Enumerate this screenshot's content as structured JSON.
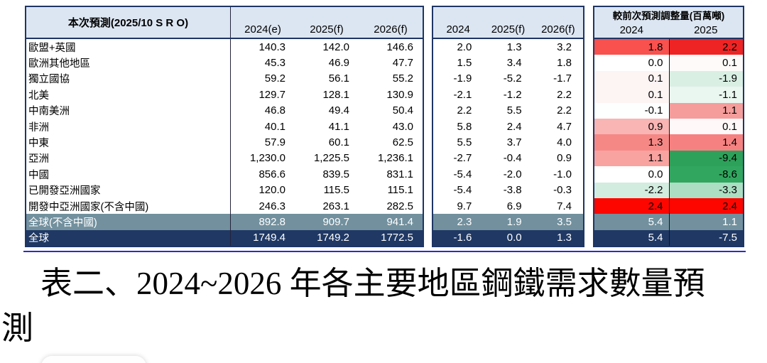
{
  "table": {
    "left_title": "本次預測(2025/10 S R O)",
    "sec1_years": [
      "2024(e)",
      "2025(f)",
      "2026(f)"
    ],
    "sec2_years": [
      "2024",
      "2025(f)",
      "2026(f)"
    ],
    "adj_title": "較前次預測調整量(百萬噸)",
    "sec3_years": [
      "2024",
      "2025"
    ],
    "row_colors": {
      "subtotal": "#72909e",
      "total": "#1f3864"
    },
    "rows": [
      {
        "label": "歐盟+英國",
        "values": [
          "140.3",
          "142.0",
          "146.6"
        ],
        "pct": [
          "2.0",
          "1.3",
          "3.2"
        ],
        "adj": [
          "1.8",
          "2.2"
        ],
        "adj_colors": [
          "#f8514e",
          "#ee2424"
        ],
        "row_type": "normal"
      },
      {
        "label": "歐洲其他地區",
        "values": [
          "45.3",
          "46.9",
          "47.7"
        ],
        "pct": [
          "1.5",
          "3.4",
          "1.8"
        ],
        "adj": [
          "0.0",
          "0.1"
        ],
        "adj_colors": [
          "#ffffff",
          "#fefafa"
        ],
        "row_type": "normal"
      },
      {
        "label": "獨立國協",
        "values": [
          "59.2",
          "56.1",
          "55.2"
        ],
        "pct": [
          "-1.9",
          "-5.2",
          "-1.7"
        ],
        "adj": [
          "0.1",
          "-1.9"
        ],
        "adj_colors": [
          "#fdf4f4",
          "#d9efe4"
        ],
        "row_type": "normal"
      },
      {
        "label": "北美",
        "values": [
          "129.7",
          "128.1",
          "130.9"
        ],
        "pct": [
          "-2.1",
          "-1.2",
          "2.2"
        ],
        "adj": [
          "0.1",
          "-1.1"
        ],
        "adj_colors": [
          "#fdf4f4",
          "#eaf6f0"
        ],
        "row_type": "normal"
      },
      {
        "label": "中南美洲",
        "values": [
          "46.8",
          "49.4",
          "50.4"
        ],
        "pct": [
          "2.2",
          "5.5",
          "2.2"
        ],
        "adj": [
          "-0.1",
          "1.1"
        ],
        "adj_colors": [
          "#fdfefe",
          "#f59d9b"
        ],
        "row_type": "normal"
      },
      {
        "label": "非洲",
        "values": [
          "40.1",
          "41.1",
          "43.0"
        ],
        "pct": [
          "5.8",
          "2.4",
          "4.7"
        ],
        "adj": [
          "0.9",
          "0.1"
        ],
        "adj_colors": [
          "#f8b5b3",
          "#fef8f8"
        ],
        "row_type": "normal"
      },
      {
        "label": "中東",
        "values": [
          "57.9",
          "60.1",
          "62.5"
        ],
        "pct": [
          "5.5",
          "3.7",
          "4.0"
        ],
        "adj": [
          "1.3",
          "1.4"
        ],
        "adj_colors": [
          "#f58885",
          "#f58281"
        ],
        "row_type": "normal"
      },
      {
        "label": "亞洲",
        "values": [
          "1,230.0",
          "1,225.5",
          "1,236.1"
        ],
        "pct": [
          "-2.7",
          "-0.4",
          "0.9"
        ],
        "adj": [
          "1.1",
          "-9.4"
        ],
        "adj_colors": [
          "#f9a3a1",
          "#2da15a"
        ],
        "row_type": "normal"
      },
      {
        "label": "中國",
        "values": [
          "856.6",
          "839.5",
          "831.1"
        ],
        "pct": [
          "-5.4",
          "-2.0",
          "-1.0"
        ],
        "adj": [
          "0.0",
          "-8.6"
        ],
        "adj_colors": [
          "#ffffff",
          "#31a65f"
        ],
        "row_type": "normal"
      },
      {
        "label": "已開發亞洲國家",
        "values": [
          "120.0",
          "115.5",
          "115.1"
        ],
        "pct": [
          "-5.4",
          "-3.8",
          "-0.3"
        ],
        "adj": [
          "-2.2",
          "-3.3"
        ],
        "adj_colors": [
          "#d2ecdf",
          "#abdec2"
        ],
        "row_type": "normal"
      },
      {
        "label": "開發中亞洲國家(不含中國)",
        "values": [
          "246.3",
          "263.1",
          "282.5"
        ],
        "pct": [
          "9.7",
          "6.9",
          "7.4"
        ],
        "adj": [
          "2.4",
          "2.4"
        ],
        "adj_colors": [
          "#fe0600",
          "#fe0600"
        ],
        "row_type": "normal"
      },
      {
        "label": "全球(不含中國)",
        "values": [
          "892.8",
          "909.7",
          "941.4"
        ],
        "pct": [
          "2.3",
          "1.9",
          "3.5"
        ],
        "adj": [
          "5.4",
          "1.1"
        ],
        "adj_colors": null,
        "row_type": "subtotal"
      },
      {
        "label": "全球",
        "values": [
          "1749.4",
          "1749.2",
          "1772.5"
        ],
        "pct": [
          "-1.6",
          "0.0",
          "1.3"
        ],
        "adj": [
          "5.4",
          "-7.5"
        ],
        "adj_colors": null,
        "row_type": "total"
      }
    ]
  },
  "caption": {
    "line1": "表二、2024~2026 年各主要地區鋼鐵需求數量預",
    "line2": "測"
  }
}
